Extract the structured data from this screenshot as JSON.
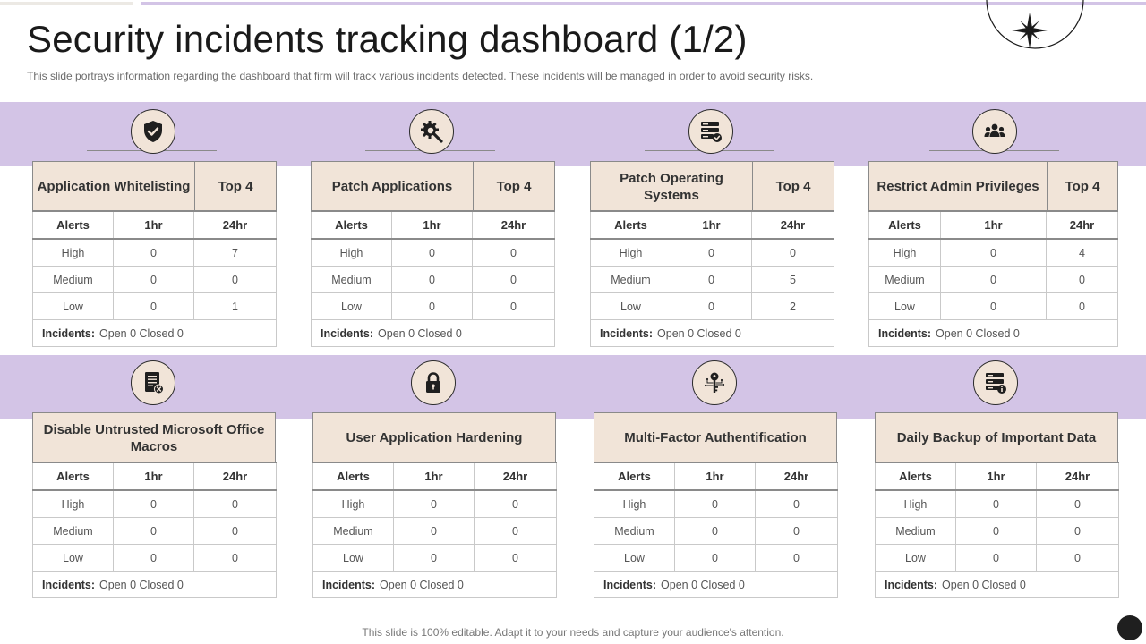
{
  "title": "Security incidents tracking dashboard (1/2)",
  "subtitle": "This slide portrays information regarding the dashboard that firm will track various incidents detected. These incidents will be managed in order to avoid security risks.",
  "footer": "This slide is 100% editable. Adapt it to your needs and capture your audience's attention.",
  "colors": {
    "band": "#d3c4e6",
    "header_fill": "#f1e4d8",
    "icon_fill": "#f1e4d8",
    "title": "#1a1a1a"
  },
  "cards": [
    {
      "icon": "shield-check-icon",
      "name": "Application Whitelisting",
      "top": "Top 4",
      "cols": [
        "Alerts",
        "1hr",
        "24hr"
      ],
      "rows": [
        [
          "High",
          "0",
          "7"
        ],
        [
          "Medium",
          "0",
          "0"
        ],
        [
          "Low",
          "0",
          "1"
        ]
      ],
      "incidents_label": "Incidents:",
      "incidents_text": "Open 0 Closed 0"
    },
    {
      "icon": "gear-search-icon",
      "name": "Patch Applications",
      "top": "Top 4",
      "cols": [
        "Alerts",
        "1hr",
        "24hr"
      ],
      "rows": [
        [
          "High",
          "0",
          "0"
        ],
        [
          "Medium",
          "0",
          "0"
        ],
        [
          "Low",
          "0",
          "0"
        ]
      ],
      "incidents_label": "Incidents:",
      "incidents_text": "Open 0 Closed 0"
    },
    {
      "icon": "server-check-icon",
      "name": "Patch Operating Systems",
      "top": "Top 4",
      "cols": [
        "Alerts",
        "1hr",
        "24hr"
      ],
      "rows": [
        [
          "High",
          "0",
          "0"
        ],
        [
          "Medium",
          "0",
          "5"
        ],
        [
          "Low",
          "0",
          "2"
        ]
      ],
      "incidents_label": "Incidents:",
      "incidents_text": "Open 0 Closed 0"
    },
    {
      "icon": "group-users-icon",
      "name": "Restrict Admin Privileges",
      "top": "Top 4",
      "cols": [
        "Alerts",
        "1hr",
        "24hr"
      ],
      "rows": [
        [
          "High",
          "0",
          "4"
        ],
        [
          "Medium",
          "0",
          "0"
        ],
        [
          "Low",
          "0",
          "0"
        ]
      ],
      "incidents_label": "Incidents:",
      "incidents_text": "Open 0 Closed 0"
    },
    {
      "icon": "document-x-icon",
      "name": "Disable Untrusted Microsoft Office Macros",
      "cols": [
        "Alerts",
        "1hr",
        "24hr"
      ],
      "rows": [
        [
          "High",
          "0",
          "0"
        ],
        [
          "Medium",
          "0",
          "0"
        ],
        [
          "Low",
          "0",
          "0"
        ]
      ],
      "incidents_label": "Incidents:",
      "incidents_text": "Open 0 Closed 0"
    },
    {
      "icon": "lock-icon",
      "name": "User Application Hardening",
      "cols": [
        "Alerts",
        "1hr",
        "24hr"
      ],
      "rows": [
        [
          "High",
          "0",
          "0"
        ],
        [
          "Medium",
          "0",
          "0"
        ],
        [
          "Low",
          "0",
          "0"
        ]
      ],
      "incidents_label": "Incidents:",
      "incidents_text": "Open 0 Closed 0"
    },
    {
      "icon": "key-circuit-icon",
      "name": "Multi-Factor Authentification",
      "cols": [
        "Alerts",
        "1hr",
        "24hr"
      ],
      "rows": [
        [
          "High",
          "0",
          "0"
        ],
        [
          "Medium",
          "0",
          "0"
        ],
        [
          "Low",
          "0",
          "0"
        ]
      ],
      "incidents_label": "Incidents:",
      "incidents_text": "Open 0 Closed 0"
    },
    {
      "icon": "server-info-icon",
      "name": "Daily Backup of Important Data",
      "cols": [
        "Alerts",
        "1hr",
        "24hr"
      ],
      "rows": [
        [
          "High",
          "0",
          "0"
        ],
        [
          "Medium",
          "0",
          "0"
        ],
        [
          "Low",
          "0",
          "0"
        ]
      ],
      "incidents_label": "Incidents:",
      "incidents_text": "Open 0 Closed 0"
    }
  ]
}
